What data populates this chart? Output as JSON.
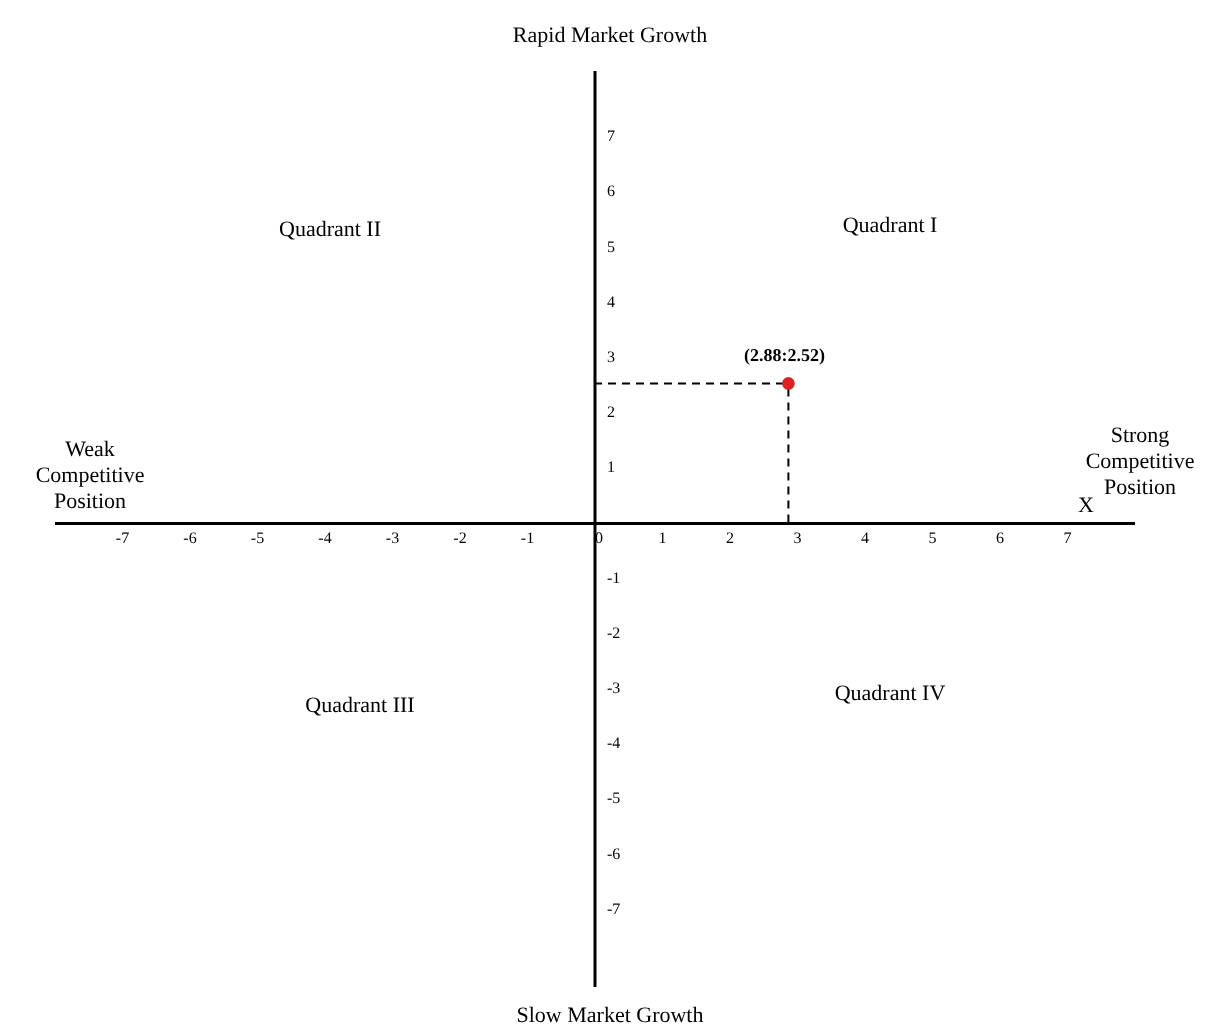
{
  "chart_data": {
    "type": "scatter",
    "xlabel": "X",
    "annotations": [
      "Quadrant II",
      "Quadrant I",
      "Quadrant III",
      "Quadrant IV",
      "Weak\nCompetitive\nPosition",
      "Strong\nCompetitive\nPosition",
      "Rapid Market Growth",
      "Slow Market Growth"
    ],
    "x": [
      2.88
    ],
    "series": [
      {
        "color": "#e02020",
        "values": [
          2.52
        ],
        "value_labels": [
          "(2.88:2.52)"
        ]
      }
    ],
    "xlim": [
      -8,
      8
    ],
    "ylim": [
      -8.4,
      8.2
    ],
    "xticks": [
      -7,
      -6,
      -5,
      -4,
      -3,
      -2,
      -1,
      0,
      1,
      2,
      3,
      4,
      5,
      6,
      7
    ],
    "yticks": [
      -7,
      -6,
      -5,
      -4,
      -3,
      -2,
      -1,
      1,
      2,
      3,
      4,
      5,
      6,
      7
    ],
    "grid": false,
    "marker": "circle"
  }
}
